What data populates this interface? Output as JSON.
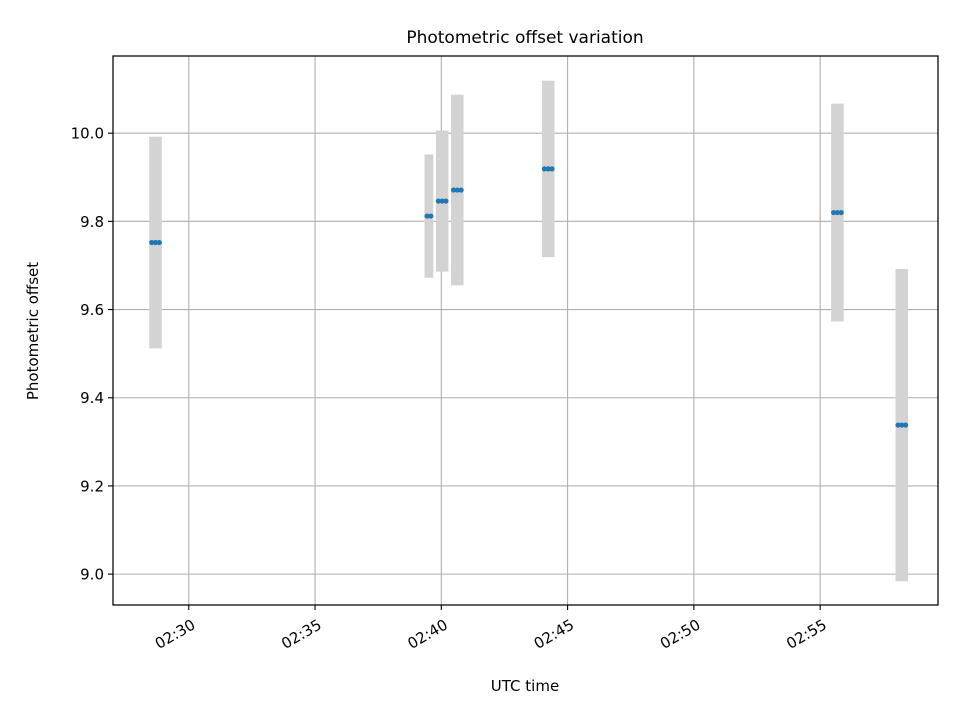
{
  "chart_data": {
    "type": "scatter",
    "title": "Photometric offset variation",
    "xlabel": "UTC time",
    "ylabel": "Photometric offset",
    "xlim": [
      "02:27:00",
      "02:59:40"
    ],
    "ylim": [
      8.93,
      10.175
    ],
    "grid": true,
    "x_ticks": [
      "02:30",
      "02:35",
      "02:40",
      "02:45",
      "02:50",
      "02:55"
    ],
    "y_ticks": [
      "9.0",
      "9.2",
      "9.4",
      "9.6",
      "9.8",
      "10.0"
    ],
    "colors": {
      "points": "#1f77b4",
      "errorbars": "#d3d3d3",
      "grid": "#b0b0b0"
    },
    "points": [
      {
        "x": "02:28:32",
        "y": 9.752,
        "yerr": 0.24
      },
      {
        "x": "02:28:41",
        "y": 9.752,
        "yerr": 0.24
      },
      {
        "x": "02:28:50",
        "y": 9.752,
        "yerr": 0.24
      },
      {
        "x": "02:39:26",
        "y": 9.812,
        "yerr": 0.14
      },
      {
        "x": "02:39:35",
        "y": 9.812,
        "yerr": 0.14
      },
      {
        "x": "02:39:53",
        "y": 9.846,
        "yerr": 0.16
      },
      {
        "x": "02:40:02",
        "y": 9.846,
        "yerr": 0.16
      },
      {
        "x": "02:40:11",
        "y": 9.846,
        "yerr": 0.16
      },
      {
        "x": "02:40:29",
        "y": 9.871,
        "yerr": 0.216
      },
      {
        "x": "02:40:38",
        "y": 9.871,
        "yerr": 0.216
      },
      {
        "x": "02:40:47",
        "y": 9.871,
        "yerr": 0.216
      },
      {
        "x": "02:44:05",
        "y": 9.919,
        "yerr": 0.2
      },
      {
        "x": "02:44:14",
        "y": 9.919,
        "yerr": 0.2
      },
      {
        "x": "02:44:23",
        "y": 9.919,
        "yerr": 0.2
      },
      {
        "x": "02:55:32",
        "y": 9.82,
        "yerr": 0.247
      },
      {
        "x": "02:55:41",
        "y": 9.82,
        "yerr": 0.247
      },
      {
        "x": "02:55:50",
        "y": 9.82,
        "yerr": 0.247
      },
      {
        "x": "02:58:05",
        "y": 9.338,
        "yerr": 0.354
      },
      {
        "x": "02:58:14",
        "y": 9.338,
        "yerr": 0.354
      },
      {
        "x": "02:58:23",
        "y": 9.338,
        "yerr": 0.354
      }
    ]
  }
}
